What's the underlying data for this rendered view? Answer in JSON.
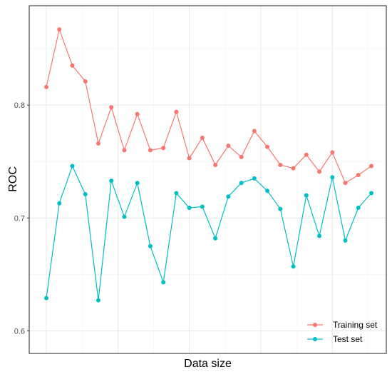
{
  "chart_data": {
    "type": "line",
    "title": "",
    "xlabel": "Data size",
    "ylabel": "ROC",
    "ylim": [
      0.58,
      0.888
    ],
    "yticks": [
      0.6,
      0.7,
      0.8
    ],
    "yticklabels": [
      "0.6",
      "0.7",
      "0.8"
    ],
    "x": [
      1,
      2,
      3,
      4,
      5,
      6,
      7,
      8,
      9,
      10,
      11,
      12,
      13,
      14,
      15,
      16,
      17,
      18,
      19,
      20,
      21,
      22,
      23,
      24,
      25,
      26
    ],
    "grid": true,
    "legend_position": "bottom-right",
    "series": [
      {
        "name": "Training set",
        "color": "#F8766D",
        "values": [
          0.816,
          0.867,
          0.835,
          0.821,
          0.766,
          0.798,
          0.76,
          0.792,
          0.76,
          0.762,
          0.794,
          0.753,
          0.771,
          0.747,
          0.764,
          0.754,
          0.777,
          0.763,
          0.747,
          0.744,
          0.756,
          0.741,
          0.758,
          0.731,
          0.738,
          0.746
        ]
      },
      {
        "name": "Test set",
        "color": "#00BFC4",
        "values": [
          0.629,
          0.713,
          0.746,
          0.721,
          0.627,
          0.733,
          0.701,
          0.731,
          0.675,
          0.643,
          0.722,
          0.709,
          0.71,
          0.682,
          0.719,
          0.731,
          0.735,
          0.724,
          0.708,
          0.657,
          0.72,
          0.684,
          0.736,
          0.68,
          0.709,
          0.722
        ]
      }
    ]
  }
}
